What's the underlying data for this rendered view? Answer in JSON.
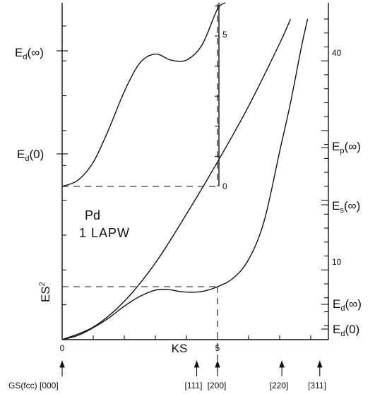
{
  "chart_data": {
    "type": "line",
    "axes": {
      "x_label": "KS",
      "x_ticks": [
        "0",
        "5"
      ],
      "y_label_base": "ES",
      "y_label_sup": "2",
      "right_ticks": [
        "10",
        "40"
      ],
      "inset_ticks": [
        "0",
        "5"
      ]
    },
    "annotation": {
      "element": "Pd",
      "basis": "1 LAPW"
    },
    "left_levels": [
      {
        "base": "E",
        "sub": "d",
        "arg": "(∞)"
      },
      {
        "base": "E",
        "sub": "d",
        "arg": "(0)"
      }
    ],
    "right_levels": [
      {
        "base": "E",
        "sub": "p",
        "arg": "(∞)"
      },
      {
        "base": "E",
        "sub": "s",
        "arg": "(∞)"
      },
      {
        "base": "E",
        "sub": "d",
        "arg": "(∞)"
      },
      {
        "base": "E",
        "sub": "d",
        "arg": "(0)"
      }
    ],
    "structures": [
      {
        "label": "GS(fcc) [000]",
        "ks": 0
      },
      {
        "label": "[111]",
        "ks": 4.33
      },
      {
        "label": "[200]",
        "ks": 5
      },
      {
        "label": "[220]",
        "ks": 7.07
      },
      {
        "label": "[311]",
        "ks": 8.29
      }
    ],
    "curves": {
      "free_electron": [
        [
          0,
          0
        ],
        [
          1,
          1.8
        ],
        [
          2,
          5.5
        ],
        [
          3,
          11
        ],
        [
          4,
          18
        ],
        [
          5,
          25.5
        ],
        [
          6,
          33.5
        ],
        [
          7,
          42.5
        ],
        [
          7.35,
          46
        ]
      ],
      "d_band": [
        [
          0,
          0
        ],
        [
          0.5,
          0.6
        ],
        [
          1,
          1.7
        ],
        [
          1.5,
          3.1
        ],
        [
          2,
          4.8
        ],
        [
          2.5,
          6.2
        ],
        [
          3,
          7.1
        ],
        [
          3.4,
          7.2
        ],
        [
          3.8,
          6.9
        ],
        [
          4.2,
          6.8
        ],
        [
          4.6,
          7
        ],
        [
          5,
          7.6
        ],
        [
          5.5,
          8.8
        ],
        [
          6,
          11.5
        ],
        [
          6.5,
          17
        ],
        [
          7,
          27
        ],
        [
          7.35,
          34
        ],
        [
          7.7,
          42
        ],
        [
          7.9,
          46
        ]
      ],
      "inset_band": [
        [
          0,
          0
        ],
        [
          0.5,
          0.2
        ],
        [
          1,
          0.8
        ],
        [
          1.5,
          1.9
        ],
        [
          2,
          3.15
        ],
        [
          2.5,
          4.1
        ],
        [
          3,
          4.4
        ],
        [
          3.5,
          4.2
        ],
        [
          4,
          4.2
        ],
        [
          4.5,
          4.7
        ],
        [
          5,
          5.9
        ],
        [
          5.25,
          6.76
        ]
      ]
    },
    "dashed_guides": {
      "main_y_level": 7.6,
      "inset_y_level": 0,
      "ks": 5
    }
  }
}
